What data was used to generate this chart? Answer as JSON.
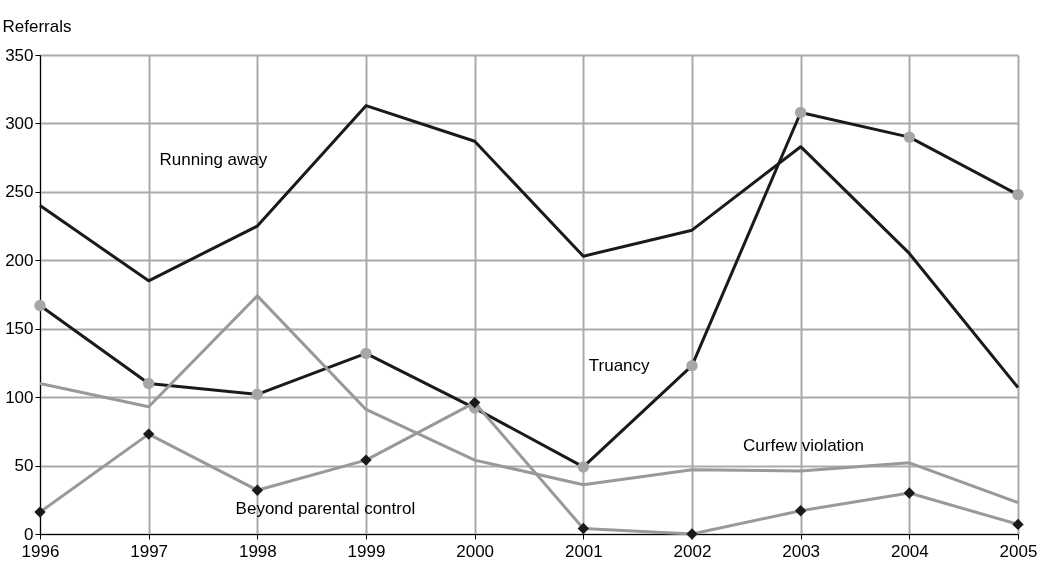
{
  "chart_data": {
    "type": "line",
    "ylabel": "Referrals",
    "x": [
      1996,
      1997,
      1998,
      1999,
      2000,
      2001,
      2002,
      2003,
      2004,
      2005
    ],
    "xlim": [
      1996,
      2005
    ],
    "xticks": [
      1996,
      1997,
      1998,
      1999,
      2000,
      2001,
      2002,
      2003,
      2004,
      2005
    ],
    "ylim": [
      0,
      350
    ],
    "yticks": [
      0,
      50,
      100,
      150,
      200,
      250,
      300,
      350
    ],
    "grid": true,
    "series": [
      {
        "name": "Running away",
        "color": "#1a1a1a",
        "values": [
          240,
          185,
          225,
          313,
          287,
          203,
          222,
          283,
          205,
          107
        ]
      },
      {
        "name": "Truancy",
        "color": "#1a1a1a",
        "marker": "circle",
        "values": [
          167,
          110,
          102,
          132,
          92,
          49,
          123,
          308,
          290,
          248
        ]
      },
      {
        "name": "Curfew violation",
        "color": "#999999",
        "values": [
          110,
          93,
          174,
          91,
          54,
          36,
          47,
          46,
          52,
          23
        ]
      },
      {
        "name": "Beyond parental control",
        "color": "#999999",
        "marker": "diamond",
        "values": [
          16,
          73,
          32,
          54,
          96,
          4,
          0,
          17,
          30,
          7
        ]
      }
    ]
  }
}
